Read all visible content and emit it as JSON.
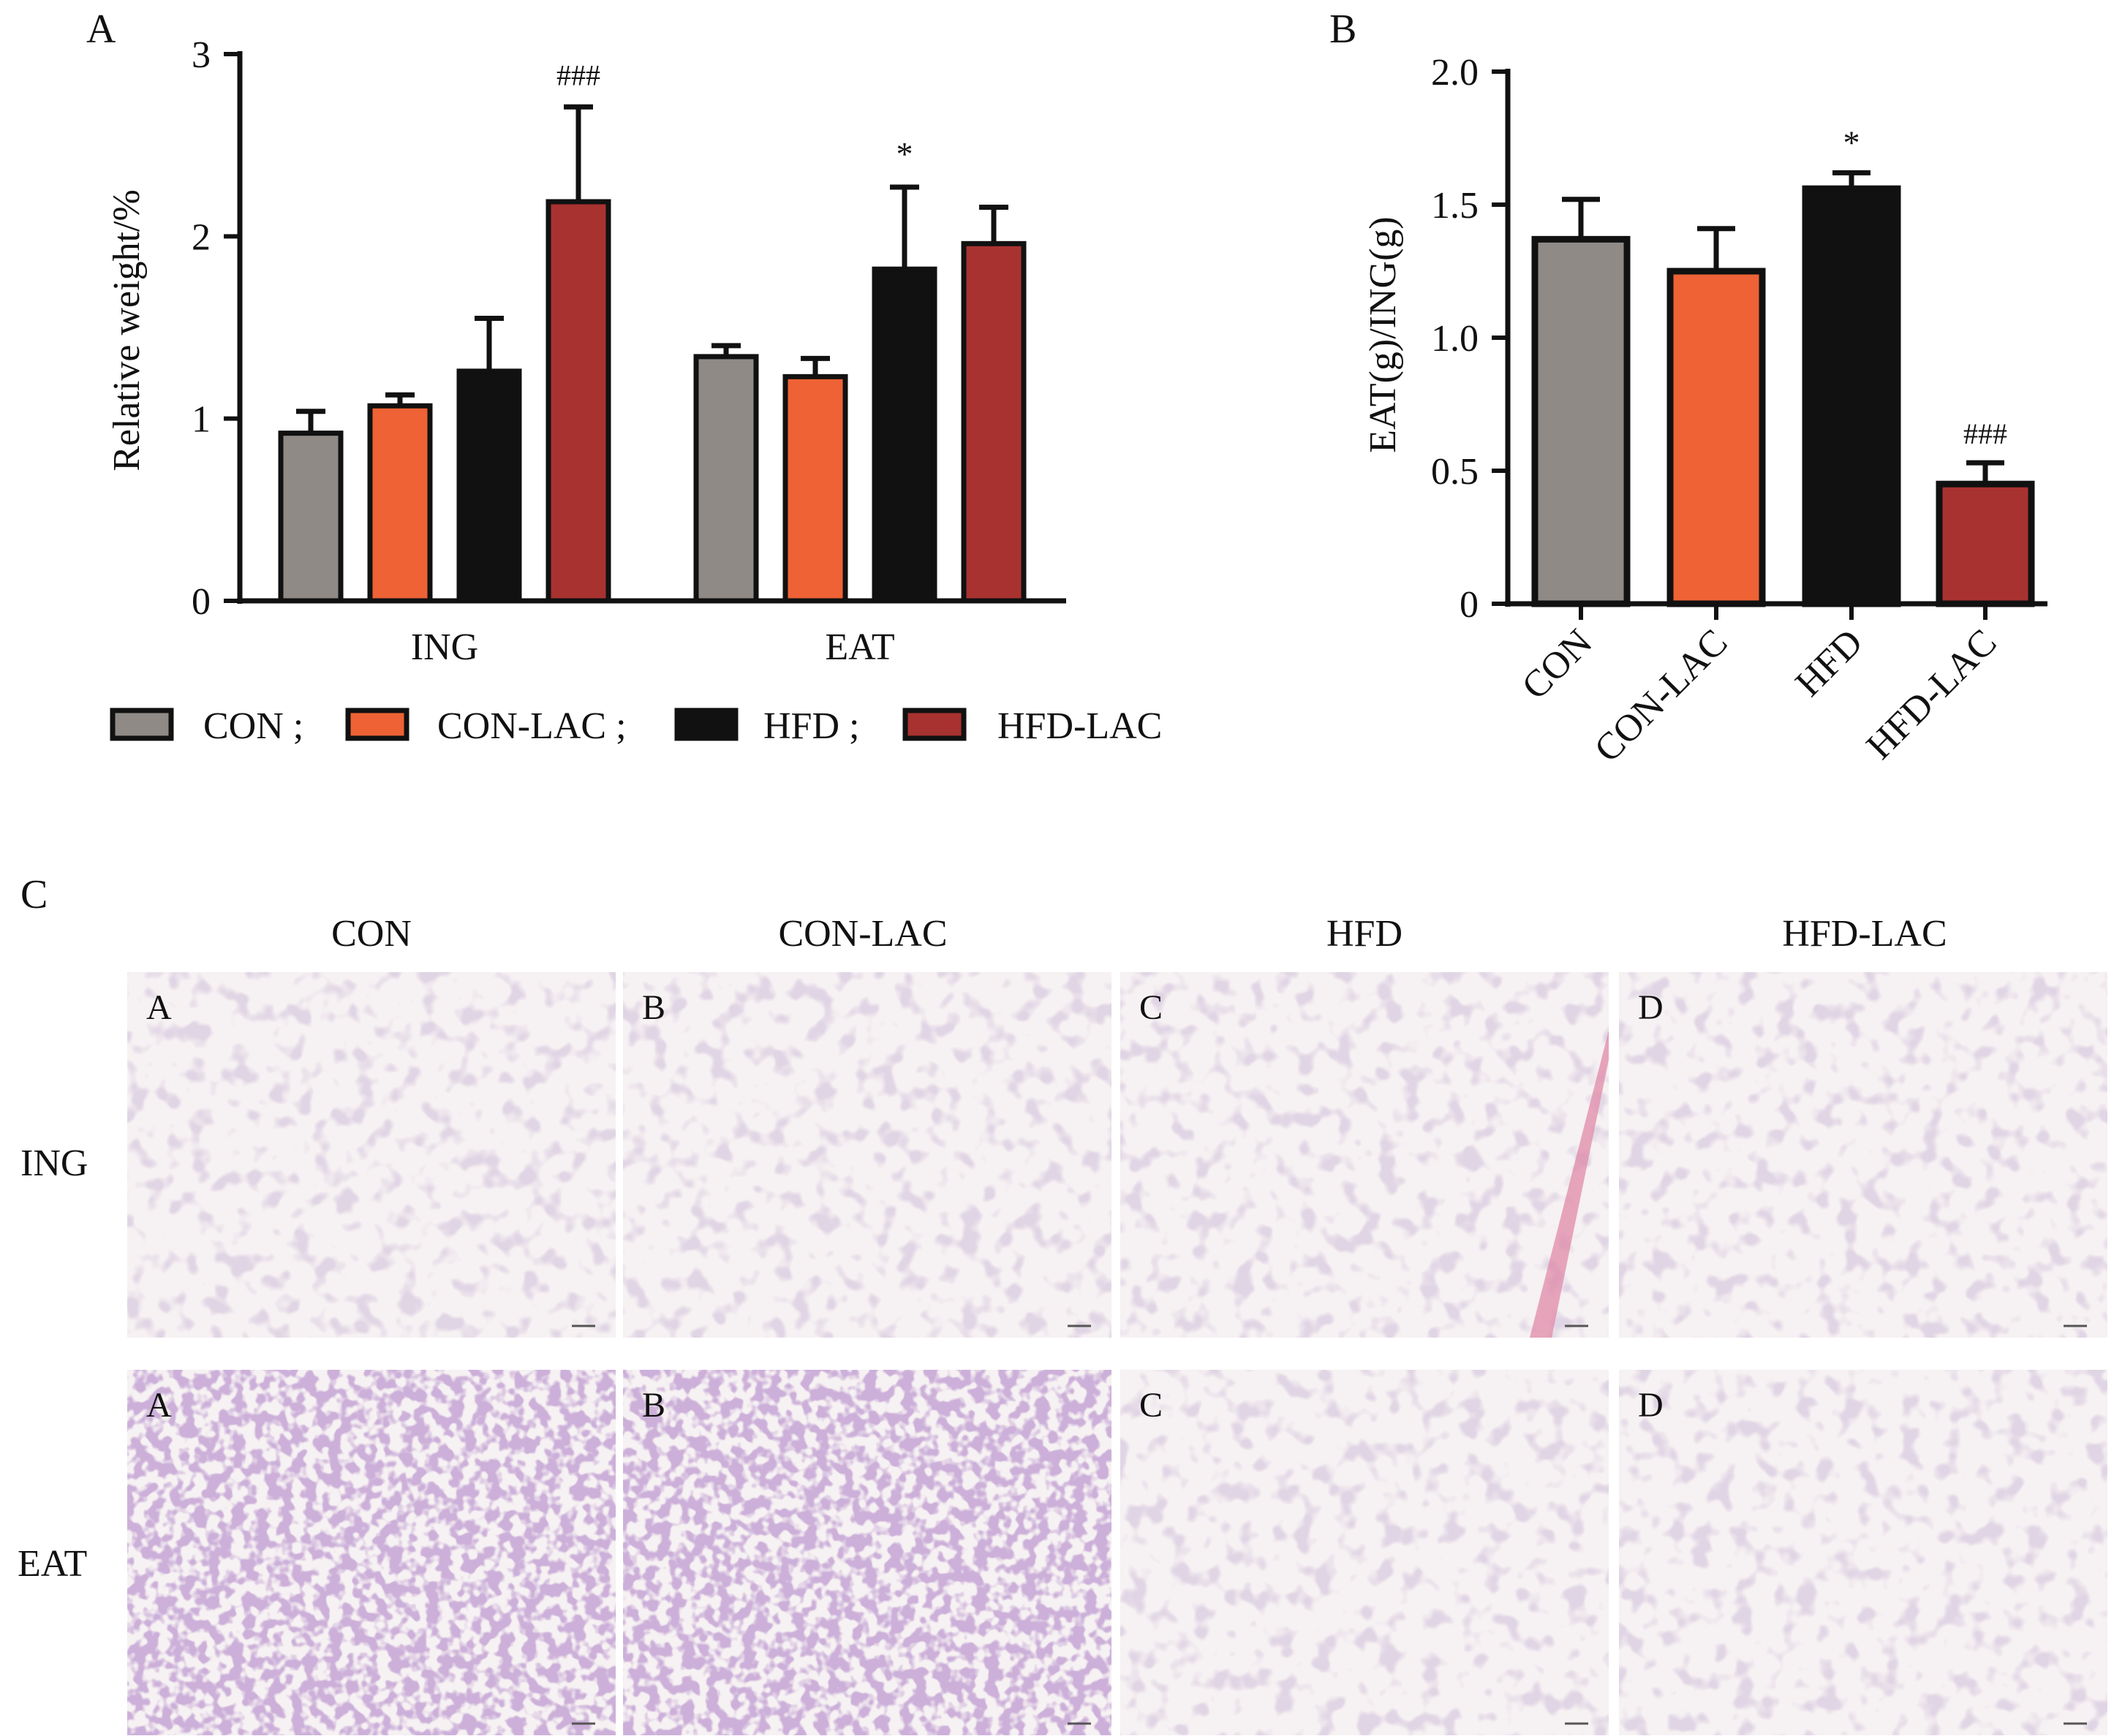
{
  "colors": {
    "CON": "#8f8a86",
    "CON-LAC": "#ee6235",
    "HFD": "#111111",
    "HFD-LAC": "#a83230",
    "axis": "#111111"
  },
  "panel_labels": {
    "a": "A",
    "b": "B",
    "c": "C"
  },
  "legend": {
    "items": [
      {
        "label": "CON ;",
        "color": "#8f8a86"
      },
      {
        "label": "CON-LAC ;",
        "color": "#ee6235"
      },
      {
        "label": "HFD ;",
        "color": "#111111"
      },
      {
        "label": "HFD-LAC",
        "color": "#a83230"
      }
    ]
  },
  "chart_data": [
    {
      "type": "bar",
      "panel": "A",
      "ylabel": "Relative weight/%",
      "ylim": [
        0,
        3
      ],
      "yticks": [
        "0",
        "1",
        "2",
        "3"
      ],
      "categories": [
        "ING",
        "EAT"
      ],
      "series": [
        {
          "name": "CON",
          "values": [
            0.92,
            1.34
          ],
          "errors": [
            0.12,
            0.06
          ]
        },
        {
          "name": "CON-LAC",
          "values": [
            1.07,
            1.23
          ],
          "errors": [
            0.06,
            0.1
          ]
        },
        {
          "name": "HFD",
          "values": [
            1.26,
            1.82
          ],
          "errors": [
            0.29,
            0.45
          ]
        },
        {
          "name": "HFD-LAC",
          "values": [
            2.19,
            1.96
          ],
          "errors": [
            0.52,
            0.2
          ]
        }
      ],
      "annotations": [
        {
          "series": "HFD-LAC",
          "category": "ING",
          "text": "###"
        },
        {
          "series": "HFD",
          "category": "EAT",
          "text": "*"
        }
      ],
      "legend": "bottom"
    },
    {
      "type": "bar",
      "panel": "B",
      "ylabel": "EAT(g)/ING(g)",
      "ylim": [
        0,
        2.0
      ],
      "yticks": [
        "0",
        "0.5",
        "1.0",
        "1.5",
        "2.0"
      ],
      "categories": [
        "CON",
        "CON-LAC",
        "HFD",
        "HFD-LAC"
      ],
      "values": [
        1.37,
        1.25,
        1.56,
        0.45
      ],
      "errors": [
        0.15,
        0.16,
        0.06,
        0.08
      ],
      "annotations": [
        {
          "category": "HFD",
          "text": "*"
        },
        {
          "category": "HFD-LAC",
          "text": "###"
        }
      ]
    }
  ],
  "histology": {
    "columns": [
      "CON",
      "CON-LAC",
      "HFD",
      "HFD-LAC"
    ],
    "rows": [
      "ING",
      "EAT"
    ],
    "tile_labels": [
      [
        "A",
        "B",
        "C",
        "D"
      ],
      [
        "A",
        "B",
        "C",
        "D"
      ]
    ]
  }
}
